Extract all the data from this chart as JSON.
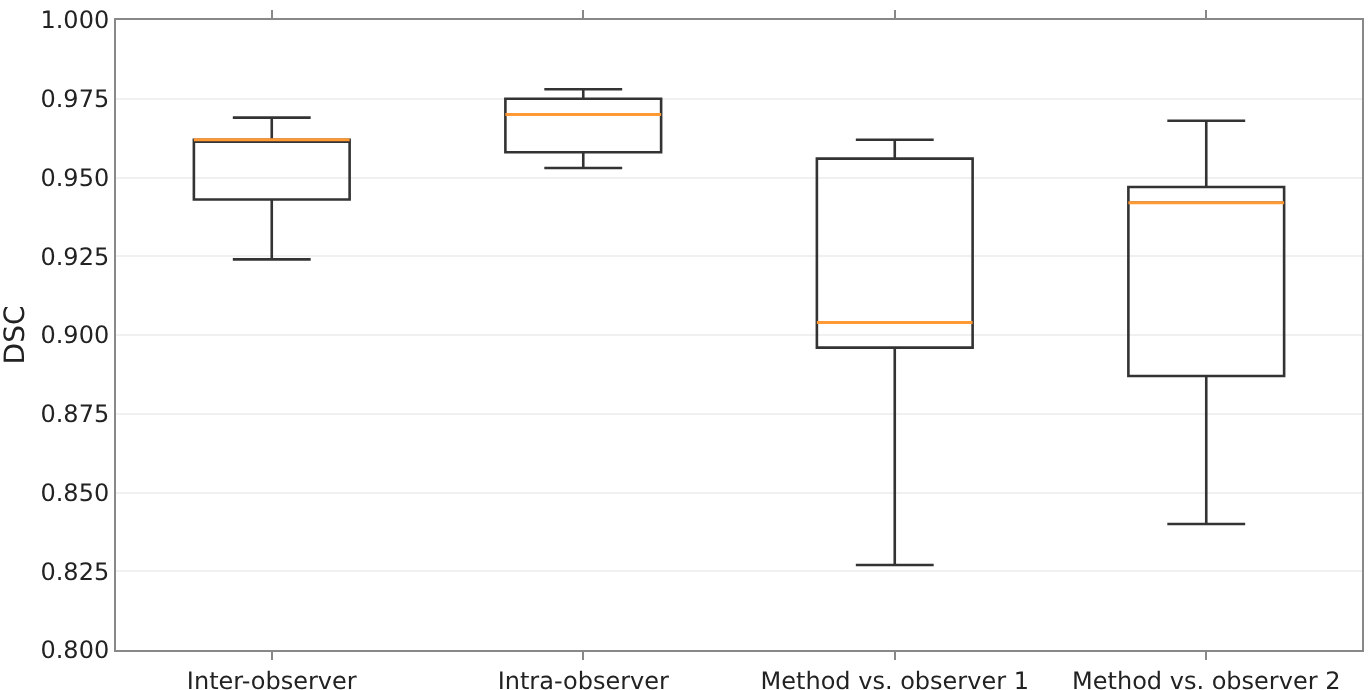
{
  "chart_data": {
    "type": "box",
    "ylabel": "DSC",
    "categories": [
      "Inter-observer",
      "Intra-observer",
      "Method vs. observer 1",
      "Method vs. observer 2"
    ],
    "boxes": [
      {
        "low": 0.924,
        "q1": 0.943,
        "median": 0.962,
        "q3": 0.962,
        "high": 0.969
      },
      {
        "low": 0.953,
        "q1": 0.958,
        "median": 0.97,
        "q3": 0.975,
        "high": 0.978
      },
      {
        "low": 0.827,
        "q1": 0.896,
        "median": 0.904,
        "q3": 0.956,
        "high": 0.962
      },
      {
        "low": 0.84,
        "q1": 0.887,
        "median": 0.942,
        "q3": 0.947,
        "high": 0.968
      }
    ],
    "color": "#333333",
    "ylim": [
      0.8,
      1.0
    ],
    "yticks": [
      {
        "value": 0.8,
        "label": "0.800"
      },
      {
        "value": 0.825,
        "label": "0.825"
      },
      {
        "value": 0.85,
        "label": "0.850"
      },
      {
        "value": 0.875,
        "label": "0.875"
      },
      {
        "value": 0.9,
        "label": "0.900"
      },
      {
        "value": 0.925,
        "label": "0.925"
      },
      {
        "value": 0.95,
        "label": "0.950"
      },
      {
        "value": 0.975,
        "label": "0.975"
      },
      {
        "value": 1.0,
        "label": "1.000"
      }
    ],
    "grid": "y"
  }
}
